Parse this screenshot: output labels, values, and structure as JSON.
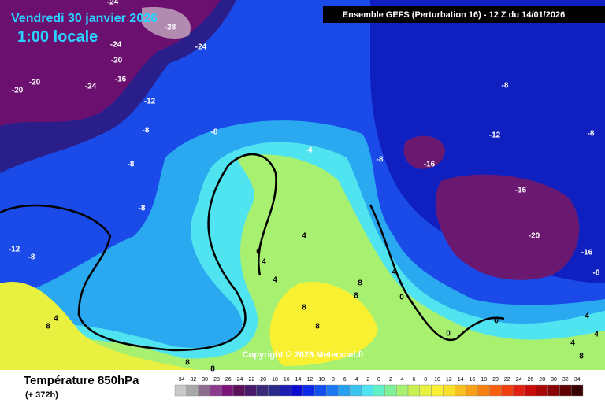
{
  "header": {
    "date": "Vendredi 30 janvier 2026",
    "time": "1:00 locale",
    "run": "Ensemble GEFS  (Perturbation 16)  -  12 Z du 14/01/2026"
  },
  "copyright": "Copyright © 2026 Meteociel.fr",
  "footer": {
    "title": "Température 850hPa",
    "lead": "(+ 372h)"
  },
  "contour_labels": [
    -24,
    -28,
    -24,
    -24,
    -20,
    -20,
    -24,
    -16,
    -20,
    -12,
    -8,
    -8,
    -8,
    -8,
    -12,
    -8,
    -4,
    -8,
    -8,
    -12,
    -8,
    -16,
    -16,
    -20,
    -16,
    -8,
    0,
    4,
    4,
    4,
    8,
    8,
    8,
    8,
    4,
    0,
    0,
    0,
    4,
    4,
    4,
    8,
    8,
    8,
    8,
    4
  ],
  "scale": {
    "values": [
      -34,
      -32,
      -30,
      -28,
      -26,
      -24,
      -22,
      -20,
      -18,
      -16,
      -14,
      -12,
      -10,
      -8,
      -6,
      -4,
      -2,
      0,
      2,
      4,
      6,
      8,
      10,
      12,
      14,
      16,
      18,
      20,
      22,
      24,
      26,
      28,
      30,
      32,
      34
    ],
    "colors": [
      "#c8c8c8",
      "#a8a8a8",
      "#8c6c8c",
      "#8c3c8c",
      "#7c147c",
      "#5c105c",
      "#4a1a6a",
      "#3a2a7a",
      "#2a2a8a",
      "#1c1cb0",
      "#0a0ad0",
      "#0a2ae8",
      "#1450f0",
      "#1c78f0",
      "#28a0f0",
      "#3cc4f0",
      "#50e4f0",
      "#60f0c8",
      "#80f098",
      "#a8f070",
      "#c8f050",
      "#e8f040",
      "#f8f030",
      "#f8e028",
      "#f8c020",
      "#f8a018",
      "#f88010",
      "#f86010",
      "#f04010",
      "#e02010",
      "#c80c0c",
      "#a80808",
      "#880404",
      "#600000",
      "#380000"
    ]
  }
}
